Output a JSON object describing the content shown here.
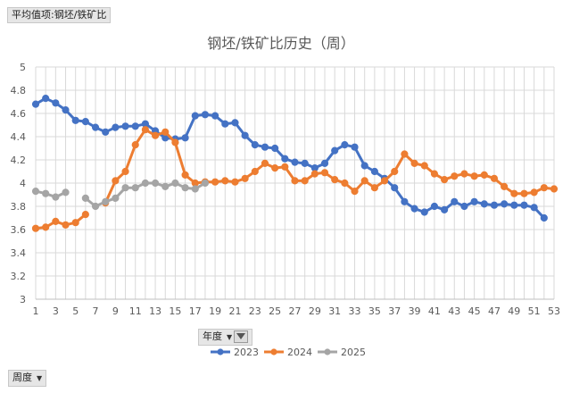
{
  "pivot": {
    "value_field": "平均值项:钢坯/铁矿比",
    "year_field": "年度",
    "week_field": "周度"
  },
  "colors": {
    "2023": "#4472c4",
    "2024": "#ed7d31",
    "2025": "#a5a5a5",
    "grid": "#d9d9d9",
    "text": "#595959"
  },
  "chart_data": {
    "type": "line",
    "title": "钢坯/铁矿比历史（周）",
    "x": [
      1,
      2,
      3,
      4,
      5,
      6,
      7,
      8,
      9,
      10,
      11,
      12,
      13,
      14,
      15,
      16,
      17,
      18,
      19,
      20,
      21,
      22,
      23,
      24,
      25,
      26,
      27,
      28,
      29,
      30,
      31,
      32,
      33,
      34,
      35,
      36,
      37,
      38,
      39,
      40,
      41,
      42,
      43,
      44,
      45,
      46,
      47,
      48,
      49,
      50,
      51,
      52,
      53
    ],
    "x_ticks": [
      "1",
      "3",
      "5",
      "7",
      "9",
      "11",
      "13",
      "15",
      "17",
      "19",
      "21",
      "23",
      "25",
      "27",
      "29",
      "31",
      "33",
      "35",
      "37",
      "39",
      "41",
      "43",
      "45",
      "47",
      "49",
      "51",
      "53"
    ],
    "ylim": [
      3,
      5
    ],
    "y_ticks": [
      "3",
      "3.2",
      "3.4",
      "3.6",
      "3.8",
      "4",
      "4.2",
      "4.4",
      "4.6",
      "4.8",
      "5"
    ],
    "grid": true,
    "legend_position": "bottom",
    "series": [
      {
        "name": "2023",
        "values": [
          4.68,
          4.73,
          4.69,
          4.63,
          4.54,
          4.53,
          4.48,
          4.44,
          4.48,
          4.49,
          4.49,
          4.51,
          4.45,
          4.39,
          4.38,
          4.39,
          4.58,
          4.59,
          4.58,
          4.51,
          4.52,
          4.41,
          4.33,
          4.31,
          4.3,
          4.21,
          4.18,
          4.17,
          4.13,
          4.17,
          4.28,
          4.33,
          4.31,
          4.15,
          4.1,
          4.04,
          3.96,
          3.84,
          3.78,
          3.75,
          3.8,
          3.77,
          3.84,
          3.8,
          3.84,
          3.82,
          3.81,
          3.82,
          3.81,
          3.81,
          3.79,
          3.7,
          null
        ]
      },
      {
        "name": "2024",
        "values": [
          3.61,
          3.62,
          3.67,
          3.64,
          3.66,
          3.73,
          null,
          3.83,
          4.02,
          4.1,
          4.33,
          4.46,
          4.41,
          4.44,
          4.35,
          4.07,
          4.0,
          4.01,
          4.01,
          4.02,
          4.01,
          4.04,
          4.1,
          4.17,
          4.13,
          4.14,
          4.02,
          4.02,
          4.08,
          4.09,
          4.03,
          4.0,
          3.93,
          4.02,
          3.96,
          4.02,
          4.1,
          4.25,
          4.17,
          4.15,
          4.08,
          4.03,
          4.06,
          4.08,
          4.06,
          4.07,
          4.04,
          3.97,
          3.91,
          3.91,
          3.92,
          3.96,
          3.95
        ]
      },
      {
        "name": "2025",
        "values": [
          3.93,
          3.91,
          3.88,
          3.92,
          null,
          3.87,
          3.8,
          3.84,
          3.87,
          3.96,
          3.96,
          4.0,
          4.0,
          3.97,
          4.0,
          3.96,
          3.95,
          4.0,
          null,
          null,
          null,
          null,
          null,
          null,
          null,
          null,
          null,
          null,
          null,
          null,
          null,
          null,
          null,
          null,
          null,
          null,
          null,
          null,
          null,
          null,
          null,
          null,
          null,
          null,
          null,
          null,
          null,
          null,
          null,
          null,
          null,
          null,
          null
        ]
      }
    ]
  }
}
